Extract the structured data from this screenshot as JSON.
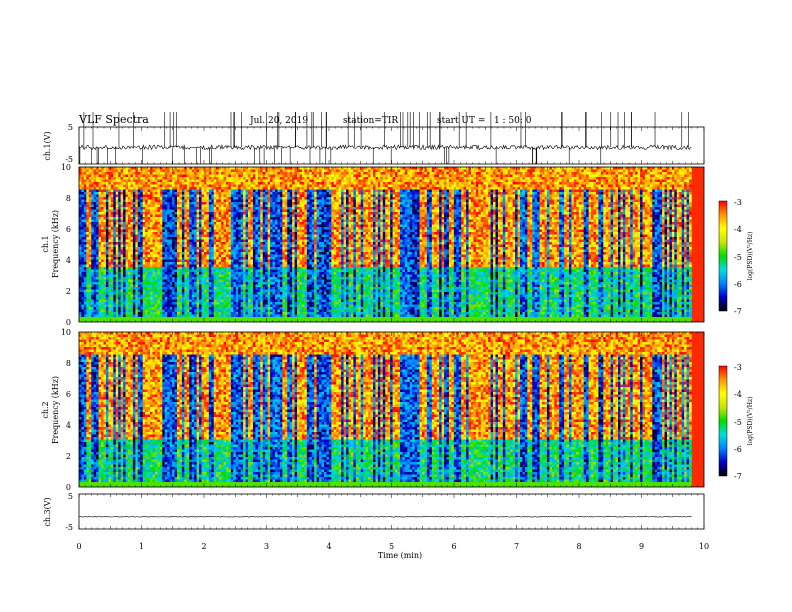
{
  "header": {
    "title": "VLF Spectra",
    "date": "Jul. 20, 2019",
    "station": "station=TIR",
    "start": "start UT =   1 : 50: 0"
  },
  "chart_data": [
    {
      "id": "waveform-ch1",
      "type": "line",
      "ylabel": "ch.1(V)",
      "yticks": [
        "5",
        "-5"
      ],
      "ylim": [
        -5,
        5
      ],
      "xlim": [
        0,
        10
      ],
      "baseline": -0.5,
      "noise": 0.6,
      "spike_count": 90,
      "data_end": 9.8
    },
    {
      "id": "spectrogram-ch1",
      "type": "heatmap",
      "ylabel_1": "ch.1",
      "ylabel_2": "Frequency (kHz)",
      "yticks": [
        "0",
        "2",
        "4",
        "6",
        "8",
        "10"
      ],
      "ylim": [
        0,
        10
      ],
      "xlim": [
        0,
        10
      ],
      "data_end": 9.8,
      "low_band_top_khz": 3.5,
      "colorbar": {
        "label": "log(PSD)(V²/Hz)",
        "range": [
          -7,
          -3
        ],
        "ticks": [
          "-3",
          "-4",
          "-5",
          "-6",
          "-7"
        ]
      }
    },
    {
      "id": "spectrogram-ch2",
      "type": "heatmap",
      "ylabel_1": "ch.2",
      "ylabel_2": "Frequency (kHz)",
      "yticks": [
        "0",
        "2",
        "4",
        "6",
        "8",
        "10"
      ],
      "ylim": [
        0,
        10
      ],
      "xlim": [
        0,
        10
      ],
      "data_end": 9.8,
      "low_band_top_khz": 3.0,
      "colorbar": {
        "label": "log(PSD)(V²/Hz)",
        "range": [
          -7,
          -3
        ],
        "ticks": [
          "-3",
          "-4",
          "-5",
          "-6",
          "-7"
        ]
      }
    },
    {
      "id": "waveform-ch3",
      "type": "line",
      "ylabel": "ch.3(V)",
      "yticks": [
        "5",
        "-5"
      ],
      "ylim": [
        -5,
        5
      ],
      "xlim": [
        0,
        10
      ],
      "baseline": -1.5,
      "noise": 0.1,
      "spike_count": 0,
      "data_end": 9.8
    }
  ],
  "xaxis": {
    "label": "Time (min)",
    "ticks": [
      "0",
      "1",
      "2",
      "3",
      "4",
      "5",
      "6",
      "7",
      "8",
      "9",
      "10"
    ]
  },
  "colors": {
    "colormap": [
      "#000000",
      "#0000c8",
      "#0082ff",
      "#00dcdc",
      "#00dc00",
      "#c8e600",
      "#ffff00",
      "#ff9600",
      "#ff0000",
      "#ffffff"
    ]
  }
}
